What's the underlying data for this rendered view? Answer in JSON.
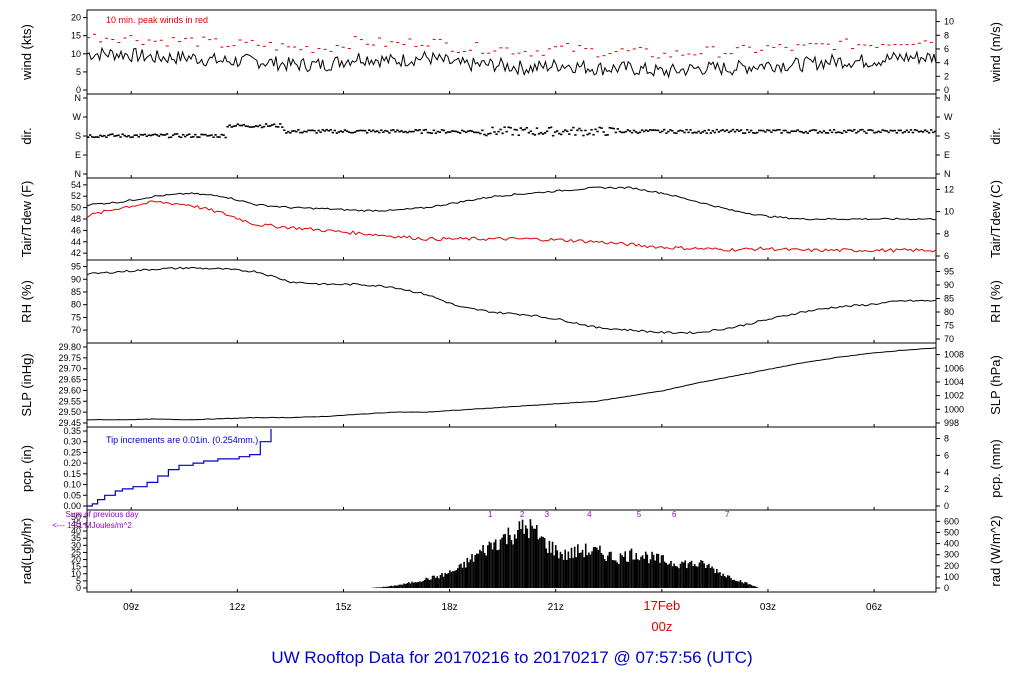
{
  "title": "UW Rooftop Data for 20170216  to  20170217 @ 07:57:56  (UTC)",
  "colors": {
    "primary": "#000000",
    "secondary": "#dd0000",
    "precip": "#0000cc",
    "rad_note": "#9900cc",
    "frame": "#000000"
  },
  "x_axis": {
    "ticks": [
      "09z",
      "12z",
      "15z",
      "18z",
      "21z",
      "17Feb",
      "03z",
      "06z"
    ],
    "midnight_label": "00z",
    "day_label": "17Feb"
  },
  "chart_data": [
    {
      "type": "line",
      "id": "wind",
      "ylabel": "wind (kts)",
      "ylabel_right": "wind (m/s)",
      "ylim": [
        0,
        21
      ],
      "yticks": [
        "0",
        "5",
        "10",
        "15",
        "20"
      ],
      "yticks_right": [
        "0",
        "2",
        "4",
        "6",
        "8",
        "10"
      ],
      "note": "10 min. peak winds in red",
      "series": [
        {
          "values_hourly": [
            10,
            10,
            9,
            9,
            8,
            8,
            7,
            7,
            9,
            8,
            9,
            7,
            7,
            6,
            7,
            6,
            6,
            5,
            6,
            6,
            7,
            7,
            8,
            8,
            9,
            9
          ]
        },
        {
          "values_hourly": [
            14,
            14,
            13,
            13,
            12,
            12,
            11,
            11,
            13,
            12,
            13,
            11,
            11,
            10,
            11,
            10,
            10,
            9,
            10,
            10,
            11,
            11,
            12,
            12,
            13,
            13
          ]
        }
      ]
    },
    {
      "type": "scatter",
      "id": "dir",
      "ylabel": "dir.",
      "ylabel_right": "dir.",
      "yticks": [
        "N",
        "E",
        "S",
        "W",
        "N"
      ]
    },
    {
      "type": "line",
      "id": "temp",
      "ylabel": "Tair/Tdew (F)",
      "ylabel_right": "Tair/Tdew (C)",
      "ylim": [
        41.5,
        54.5
      ],
      "yticks": [
        "42",
        "44",
        "46",
        "48",
        "50",
        "52",
        "54"
      ],
      "yticks_right": [
        "6",
        "8",
        "10",
        "12"
      ],
      "series": [
        {
          "values_hourly": [
            50.5,
            51,
            52,
            52.5,
            52,
            50.5,
            50,
            49.8,
            49.5,
            49.5,
            50,
            51,
            52,
            52.5,
            53,
            53.5,
            53.5,
            52.5,
            51,
            49.5,
            48.5,
            48,
            48,
            48,
            48,
            48
          ]
        },
        {
          "values_hourly": [
            48.5,
            50,
            51,
            50.5,
            49,
            47,
            46.5,
            46,
            45.5,
            45,
            44.5,
            44.5,
            44.5,
            44.5,
            44.3,
            44,
            43.5,
            43,
            42.8,
            42.6,
            42.8,
            42.5,
            42.5,
            42.5,
            42.5,
            42.5
          ]
        }
      ]
    },
    {
      "type": "line",
      "id": "rh",
      "ylabel": "RH (%)",
      "ylabel_right": "RH (%)",
      "ylim": [
        66.5,
        96
      ],
      "yticks": [
        "70",
        "75",
        "80",
        "85",
        "90",
        "95"
      ],
      "yticks_right": [
        "70",
        "75",
        "80",
        "85",
        "90",
        "95"
      ],
      "series": [
        {
          "values_hourly": [
            92,
            93,
            94,
            94.5,
            94,
            93,
            89,
            88,
            88,
            87,
            84,
            79,
            77,
            76,
            74,
            71,
            70,
            69,
            69,
            71,
            74,
            77,
            79,
            80,
            81.5,
            81.5
          ]
        }
      ]
    },
    {
      "type": "line",
      "id": "slp",
      "ylabel": "SLP (inHg)",
      "ylabel_right": "SLP (hPa)",
      "ylim": [
        29.45,
        29.8
      ],
      "yticks": [
        "29.45",
        "29.50",
        "29.55",
        "29.60",
        "29.65",
        "29.70",
        "29.75",
        "29.80"
      ],
      "yticks_right": [
        "998",
        "1000",
        "1002",
        "1004",
        "1006",
        "1008"
      ],
      "series": [
        {
          "values_hourly": [
            29.465,
            29.465,
            29.468,
            29.465,
            29.47,
            29.475,
            29.475,
            29.48,
            29.49,
            29.5,
            29.5,
            29.51,
            29.52,
            29.53,
            29.54,
            29.55,
            29.575,
            29.6,
            29.635,
            29.665,
            29.695,
            29.725,
            29.75,
            29.77,
            29.785,
            29.795
          ]
        }
      ]
    },
    {
      "type": "line",
      "id": "pcp",
      "ylabel": "pcp. (in)",
      "ylabel_right": "pcp. (mm)",
      "ylim": [
        0,
        0.35
      ],
      "yticks": [
        "0.00",
        "0.05",
        "0.10",
        "0.15",
        "0.20",
        "0.25",
        "0.30",
        "0.35"
      ],
      "yticks_right": [
        "0",
        "2",
        "4",
        "6",
        "8"
      ],
      "note": "Tip increments are 0.01in. (0.254mm.)",
      "series": [
        {
          "x_hours": [
            0,
            0.15,
            0.3,
            0.5,
            0.8,
            1.0,
            1.3,
            1.7,
            2.0,
            2.3,
            2.6,
            3.0,
            3.3,
            3.7,
            4.0,
            4.3,
            4.6,
            4.9,
            5.2
          ],
          "values": [
            0.0,
            0.01,
            0.03,
            0.05,
            0.07,
            0.08,
            0.09,
            0.11,
            0.14,
            0.17,
            0.19,
            0.2,
            0.21,
            0.22,
            0.22,
            0.23,
            0.24,
            0.3,
            0.36
          ]
        }
      ]
    },
    {
      "type": "area",
      "id": "rad",
      "ylabel": "rad(Lgly/hr)",
      "ylabel_right": "rad (W/m^2)",
      "ylim": [
        0,
        52
      ],
      "yticks": [
        "0",
        "5",
        "10",
        "15",
        "20",
        "25",
        "30",
        "35",
        "40",
        "45",
        "50"
      ],
      "yticks_right": [
        "0",
        "100",
        "200",
        "300",
        "400",
        "500",
        "600"
      ],
      "note_line1": "Sum of previous day",
      "note_line2": "<--- 1.51 MJoules/m^2",
      "markers": [
        "1",
        "2",
        "3",
        "4",
        "5",
        "6",
        "7"
      ],
      "series": [
        {
          "x_hours": [
            8,
            8.5,
            9,
            9.5,
            10,
            10.5,
            11,
            11.5,
            12,
            12.5,
            13,
            13.5,
            14,
            14.5,
            15,
            15.5,
            16,
            16.5,
            17,
            17.5,
            18,
            18.5,
            19
          ],
          "values": [
            0,
            1,
            3,
            6,
            9,
            14,
            24,
            33,
            40,
            45,
            32,
            24,
            28,
            26,
            22,
            26,
            22,
            19,
            18,
            17,
            10,
            5,
            0
          ]
        }
      ]
    }
  ]
}
